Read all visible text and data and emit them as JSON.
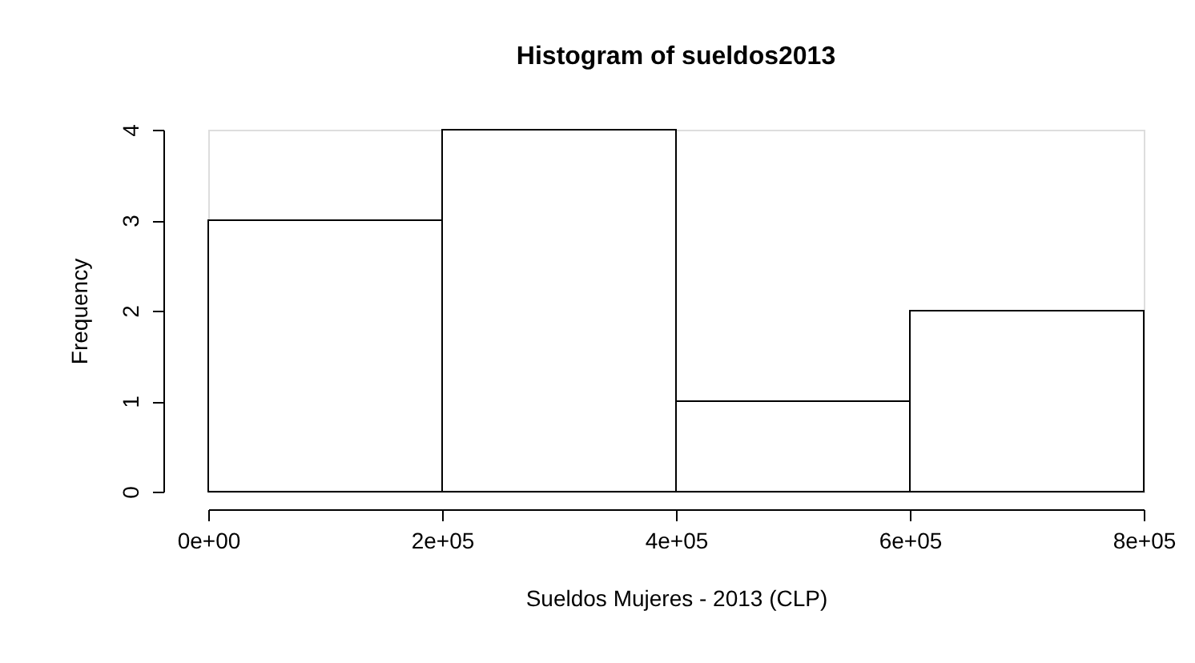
{
  "chart_data": {
    "type": "histogram",
    "title": "Histogram of sueldos2013",
    "xlabel": "Sueldos Mujeres - 2013 (CLP)",
    "ylabel": "Frequency",
    "bins": [
      0,
      200000,
      400000,
      600000,
      800000
    ],
    "values": [
      3,
      4,
      1,
      2
    ],
    "color": "#ffffff",
    "xlim": [
      0,
      800000
    ],
    "xticks": [
      {
        "value": 0,
        "label": "0e+00"
      },
      {
        "value": 200000,
        "label": "2e+05"
      },
      {
        "value": 400000,
        "label": "4e+05"
      },
      {
        "value": 600000,
        "label": "6e+05"
      },
      {
        "value": 800000,
        "label": "8e+05"
      }
    ],
    "ylim": [
      0,
      4
    ],
    "yticks": [
      0,
      1,
      2,
      3,
      4
    ],
    "grid": false
  }
}
